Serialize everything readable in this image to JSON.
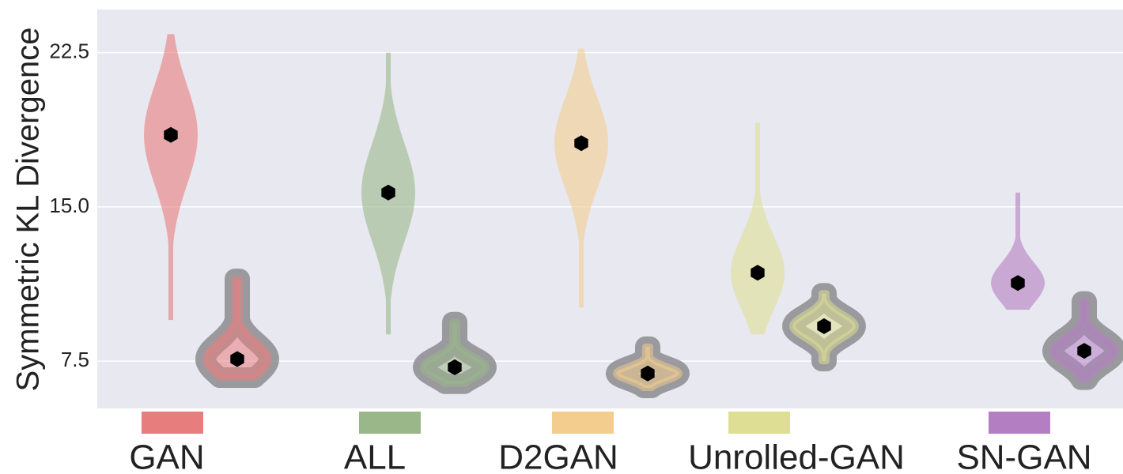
{
  "chart_data": {
    "type": "violin",
    "ylabel": "Symmetric KL Divergence",
    "y_ticks": [
      "7.5",
      "15.0",
      "22.5"
    ],
    "ylim": [
      5.2,
      24.6
    ],
    "grid": true,
    "categories": [
      "GAN",
      "ALL",
      "D2GAN",
      "Unrolled-GAN",
      "SN-GAN"
    ],
    "colors": [
      "#e87d7d",
      "#9ab78a",
      "#f3cd8e",
      "#dedf94",
      "#b47fc2"
    ],
    "series": [
      {
        "values": [
          {
            "min": 9.5,
            "max": 23.4,
            "mean": 18.5
          },
          {
            "min": 8.8,
            "max": 22.5,
            "mean": 15.7
          },
          {
            "min": 10.1,
            "max": 22.7,
            "mean": 18.1
          },
          {
            "min": 8.8,
            "max": 19.1,
            "mean": 11.8
          },
          {
            "min": 10.0,
            "max": 15.7,
            "mean": 11.3
          }
        ]
      },
      {
        "values": [
          {
            "min": 6.7,
            "max": 11.5,
            "mean": 7.6
          },
          {
            "min": 6.4,
            "max": 9.4,
            "mean": 7.2
          },
          {
            "min": 6.2,
            "max": 8.2,
            "mean": 6.9
          },
          {
            "min": 7.5,
            "max": 10.8,
            "mean": 9.2
          },
          {
            "min": 6.6,
            "max": 10.4,
            "mean": 8.0
          }
        ]
      }
    ]
  }
}
